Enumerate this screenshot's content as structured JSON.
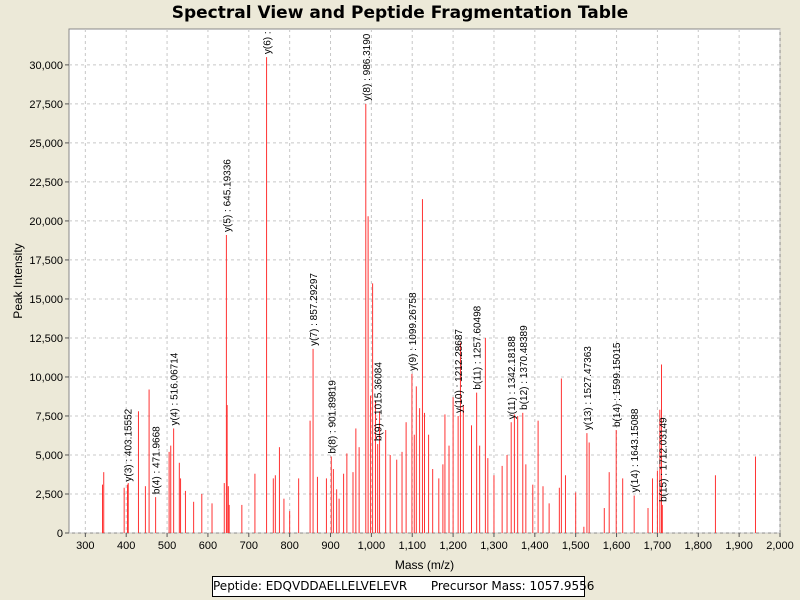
{
  "chart_data": {
    "type": "bar",
    "title": "Spectral View and Peptide Fragmentation Table",
    "xlabel": "Mass (m/z)",
    "ylabel": "Peak Intensity",
    "xlim": [
      260,
      2000
    ],
    "ylim": [
      0,
      32300
    ],
    "x_ticks": [
      "300",
      "400",
      "500",
      "600",
      "700",
      "800",
      "900",
      "1,000",
      "1,100",
      "1,200",
      "1,300",
      "1,400",
      "1,500",
      "1,600",
      "1,700",
      "1,800",
      "1,900",
      "2,000"
    ],
    "y_ticks": [
      "0",
      "2,500",
      "5,000",
      "7,500",
      "10,000",
      "12,500",
      "15,000",
      "17,500",
      "20,000",
      "22,500",
      "25,000",
      "27,500",
      "30,000"
    ],
    "grid": true,
    "series": [
      {
        "name": "peaks",
        "peaks": [
          [
            342,
            3100
          ],
          [
            345,
            3900
          ],
          [
            395,
            2900
          ],
          [
            403.16,
            3100
          ],
          [
            405,
            3200
          ],
          [
            430,
            7800
          ],
          [
            447,
            3000
          ],
          [
            456,
            9200
          ],
          [
            471.97,
            2300
          ],
          [
            505,
            5200
          ],
          [
            509,
            5600
          ],
          [
            516.07,
            6700
          ],
          [
            530,
            4500
          ],
          [
            533,
            3500
          ],
          [
            545,
            2700
          ],
          [
            565,
            2000
          ],
          [
            585,
            2500
          ],
          [
            610,
            1900
          ],
          [
            640,
            3200
          ],
          [
            645.19,
            19100
          ],
          [
            647,
            8200
          ],
          [
            650,
            3000
          ],
          [
            652,
            1800
          ],
          [
            683,
            1800
          ],
          [
            715,
            3800
          ],
          [
            743.5,
            30500
          ],
          [
            760,
            3500
          ],
          [
            765,
            3700
          ],
          [
            775,
            5500
          ],
          [
            786,
            2200
          ],
          [
            800,
            1400
          ],
          [
            822,
            3500
          ],
          [
            850,
            7200
          ],
          [
            857.29,
            11800
          ],
          [
            868,
            3600
          ],
          [
            890,
            3500
          ],
          [
            901.9,
            4900
          ],
          [
            907,
            4100
          ],
          [
            915,
            2800
          ],
          [
            921,
            2200
          ],
          [
            932,
            3800
          ],
          [
            940,
            5100
          ],
          [
            955,
            3900
          ],
          [
            962,
            6700
          ],
          [
            970,
            5500
          ],
          [
            986.32,
            27500
          ],
          [
            992,
            20300
          ],
          [
            998,
            8800
          ],
          [
            1003,
            16000
          ],
          [
            1010,
            8500
          ],
          [
            1015.37,
            5700
          ],
          [
            1020,
            7800
          ],
          [
            1035,
            6600
          ],
          [
            1046,
            5000
          ],
          [
            1062,
            4700
          ],
          [
            1075,
            5200
          ],
          [
            1085,
            7100
          ],
          [
            1099.27,
            10200
          ],
          [
            1105,
            6300
          ],
          [
            1110,
            9400
          ],
          [
            1118,
            8000
          ],
          [
            1125,
            21400
          ],
          [
            1130,
            7700
          ],
          [
            1140,
            6300
          ],
          [
            1150,
            4100
          ],
          [
            1165,
            3500
          ],
          [
            1175,
            4400
          ],
          [
            1180,
            7600
          ],
          [
            1190,
            5600
          ],
          [
            1200,
            8700
          ],
          [
            1212.29,
            7500
          ],
          [
            1218,
            12200
          ],
          [
            1225,
            8200
          ],
          [
            1245,
            6900
          ],
          [
            1257.6,
            9000
          ],
          [
            1265,
            5600
          ],
          [
            1279,
            12500
          ],
          [
            1285,
            4800
          ],
          [
            1300,
            3700
          ],
          [
            1320,
            4300
          ],
          [
            1332,
            5000
          ],
          [
            1342.18,
            7100
          ],
          [
            1350,
            7600
          ],
          [
            1358,
            7500
          ],
          [
            1370.48,
            7700
          ],
          [
            1378,
            4400
          ],
          [
            1395,
            3100
          ],
          [
            1408,
            7200
          ],
          [
            1420,
            3000
          ],
          [
            1435,
            1900
          ],
          [
            1460,
            2900
          ],
          [
            1465,
            9900
          ],
          [
            1475,
            3700
          ],
          [
            1500,
            2600
          ],
          [
            1520,
            400
          ],
          [
            1527.47,
            6400
          ],
          [
            1533,
            5800
          ],
          [
            1570,
            1600
          ],
          [
            1582,
            3900
          ],
          [
            1599.15,
            6600
          ],
          [
            1615,
            3500
          ],
          [
            1643.15,
            2400
          ],
          [
            1677,
            1600
          ],
          [
            1688,
            3500
          ],
          [
            1700,
            4000
          ],
          [
            1706,
            7900
          ],
          [
            1710,
            10800
          ],
          [
            1712.03,
            1800
          ],
          [
            1842,
            3700
          ],
          [
            1940,
            4900
          ]
        ]
      }
    ],
    "annotations": [
      {
        "x": 403.16,
        "y": 3100,
        "label": "y(3) : 403.15552"
      },
      {
        "x": 471.97,
        "y": 2300,
        "label": "b(4) : 471.9668"
      },
      {
        "x": 516.07,
        "y": 6700,
        "label": "y(4) : 516.06714"
      },
      {
        "x": 645.19,
        "y": 19100,
        "label": "y(5) : 645.19336"
      },
      {
        "x": 743.5,
        "y": 30500,
        "label": "y(6) :"
      },
      {
        "x": 857.29,
        "y": 11800,
        "label": "y(7) : 857.29297"
      },
      {
        "x": 901.9,
        "y": 4900,
        "label": "b(8) : 901.89819"
      },
      {
        "x": 986.32,
        "y": 27500,
        "label": "y(8) : 986.3190"
      },
      {
        "x": 1015.37,
        "y": 5700,
        "label": "b(9) : 1015.36084"
      },
      {
        "x": 1099.27,
        "y": 10200,
        "label": "y(9) : 1099.26758"
      },
      {
        "x": 1212.29,
        "y": 7500,
        "label": "y(10) : 1212.28687"
      },
      {
        "x": 1257.6,
        "y": 9000,
        "label": "b(11) : 1257.60498"
      },
      {
        "x": 1342.18,
        "y": 7100,
        "label": "y(11) : 1342.18188"
      },
      {
        "x": 1370.48,
        "y": 7700,
        "label": "b(12) : 1370.48389"
      },
      {
        "x": 1527.47,
        "y": 6400,
        "label": "y(13) : 1527.47363"
      },
      {
        "x": 1599.15,
        "y": 6600,
        "label": "b(14) : 1599.15015"
      },
      {
        "x": 1643.15,
        "y": 2400,
        "label": "y(14) : 1643.15088"
      },
      {
        "x": 1712.03,
        "y": 1800,
        "label": "b(15) : 1712.03149"
      }
    ],
    "colors": {
      "peak": "#ff3333",
      "plot_background": "#ffffff",
      "grid": "#c8c8c8",
      "page_background": "#ece9d8"
    }
  },
  "info_box": {
    "peptide_label": "Peptide:",
    "peptide": "EDQVDDAELLELVELEVR",
    "precursor_label": "Precursor Mass:",
    "precursor_mass": "1057.9556"
  }
}
